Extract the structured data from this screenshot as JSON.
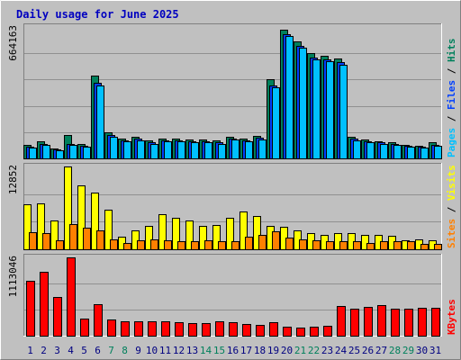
{
  "title": "Daily usage for June 2025",
  "colors": {
    "background": "#c0c0c0",
    "plot_background": "#c0c0c0",
    "frame_light": "#ffffff",
    "frame_dark": "#808080",
    "grid": "#909090",
    "title": "#0000c0",
    "hits": "#00805c",
    "files": "#0040ff",
    "pages": "#00c0ff",
    "visits": "#ffff00",
    "sites": "#ff8000",
    "kbytes": "#ff0000",
    "label_text": "#000000",
    "weekend_day": "#00805c",
    "weekday": "#000080"
  },
  "chart_data": [
    {
      "type": "bar",
      "panel": "hits-files-pages",
      "categories": [
        "1",
        "2",
        "3",
        "4",
        "5",
        "6",
        "7",
        "8",
        "9",
        "10",
        "11",
        "12",
        "13",
        "14",
        "15",
        "16",
        "17",
        "18",
        "19",
        "20",
        "21",
        "22",
        "23",
        "24",
        "25",
        "26",
        "27",
        "28",
        "29",
        "30",
        "31"
      ],
      "y_max_label": "664163",
      "ylim": [
        0,
        664163
      ],
      "legend_order": [
        "Pages",
        "Files",
        "Hits"
      ],
      "legend_separator": " / ",
      "series": [
        {
          "name": "Hits",
          "color": "hits",
          "values": [
            70000,
            85000,
            50000,
            120000,
            75000,
            420000,
            130000,
            100000,
            110000,
            90000,
            100000,
            100000,
            95000,
            95000,
            90000,
            110000,
            100000,
            115000,
            400000,
            650000,
            590000,
            530000,
            520000,
            505000,
            110000,
            95000,
            85000,
            80000,
            70000,
            65000,
            80000
          ]
        },
        {
          "name": "Files",
          "color": "files",
          "values": [
            60000,
            75000,
            45000,
            75000,
            65000,
            380000,
            120000,
            90000,
            100000,
            80000,
            90000,
            90000,
            85000,
            85000,
            80000,
            100000,
            90000,
            105000,
            370000,
            630000,
            570000,
            510000,
            500000,
            485000,
            100000,
            85000,
            80000,
            75000,
            65000,
            60000,
            70000
          ]
        },
        {
          "name": "Pages",
          "color": "pages",
          "values": [
            55000,
            70000,
            40000,
            70000,
            60000,
            370000,
            110000,
            85000,
            90000,
            75000,
            85000,
            85000,
            80000,
            80000,
            75000,
            95000,
            85000,
            95000,
            360000,
            620000,
            560000,
            500000,
            490000,
            475000,
            90000,
            80000,
            75000,
            70000,
            60000,
            55000,
            65000
          ]
        }
      ]
    },
    {
      "type": "bar",
      "panel": "visits-sites",
      "categories": [
        "1",
        "2",
        "3",
        "4",
        "5",
        "6",
        "7",
        "8",
        "9",
        "10",
        "11",
        "12",
        "13",
        "14",
        "15",
        "16",
        "17",
        "18",
        "19",
        "20",
        "21",
        "22",
        "23",
        "24",
        "25",
        "26",
        "27",
        "28",
        "29",
        "30",
        "31"
      ],
      "y_max_label": "12852",
      "ylim": [
        0,
        12852
      ],
      "legend_order": [
        "Sites",
        "Visits"
      ],
      "legend_separator": " / ",
      "series": [
        {
          "name": "Visits",
          "color": "visits",
          "values": [
            7000,
            7100,
            4500,
            12852,
            9900,
            8800,
            6100,
            2000,
            2900,
            3700,
            5400,
            4900,
            4500,
            3700,
            3800,
            4900,
            5900,
            5100,
            3700,
            3500,
            2900,
            2500,
            2300,
            2500,
            2500,
            2300,
            2300,
            2100,
            1400,
            1500,
            1400
          ]
        },
        {
          "name": "Sites",
          "color": "sites",
          "values": [
            2700,
            2500,
            1400,
            3900,
            3400,
            2900,
            1600,
            1000,
            1400,
            1500,
            1400,
            1300,
            1300,
            1400,
            1300,
            1200,
            1900,
            2300,
            2800,
            1800,
            1500,
            1400,
            1300,
            1200,
            1200,
            1000,
            1200,
            1300,
            1300,
            900,
            900
          ]
        }
      ]
    },
    {
      "type": "bar",
      "panel": "kbytes",
      "categories": [
        "1",
        "2",
        "3",
        "4",
        "5",
        "6",
        "7",
        "8",
        "9",
        "10",
        "11",
        "12",
        "13",
        "14",
        "15",
        "16",
        "17",
        "18",
        "19",
        "20",
        "21",
        "22",
        "23",
        "24",
        "25",
        "26",
        "27",
        "28",
        "29",
        "30",
        "31"
      ],
      "y_max_label": "1113046",
      "ylim": [
        0,
        1113046
      ],
      "legend_order": [
        "KBytes"
      ],
      "legend_separator": "",
      "series": [
        {
          "name": "KBytes",
          "color": "kbytes",
          "values": [
            785000,
            910000,
            545000,
            1113046,
            240000,
            445000,
            230000,
            200000,
            210000,
            205000,
            200000,
            190000,
            185000,
            175000,
            200000,
            190000,
            160000,
            155000,
            190000,
            130000,
            120000,
            125000,
            140000,
            425000,
            385000,
            415000,
            430000,
            385000,
            380000,
            395000,
            400000
          ]
        }
      ]
    }
  ],
  "day_label_style": [
    "weekday",
    "weekday",
    "weekday",
    "weekday",
    "weekday",
    "weekday",
    "weekend",
    "weekend",
    "weekday",
    "weekday",
    "weekday",
    "weekday",
    "weekday",
    "weekend",
    "weekend",
    "weekday",
    "weekday",
    "weekday",
    "weekday",
    "weekday",
    "weekend",
    "weekend",
    "weekday",
    "weekday",
    "weekday",
    "weekday",
    "weekday",
    "weekend",
    "weekend",
    "weekday",
    "weekday"
  ]
}
